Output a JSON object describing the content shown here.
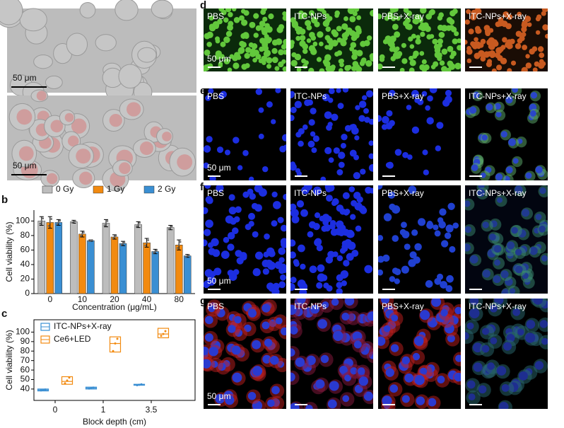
{
  "panel_labels": [
    "a",
    "b",
    "c",
    "d",
    "e",
    "f",
    "g"
  ],
  "panel_a": {
    "scale_bars": [
      "50 μm",
      "50 μm"
    ]
  },
  "image_rows": [
    {
      "labels": [
        "PBS",
        "ITC-NPs",
        "PBS+X-ray",
        "ITC-NPs+X-ray"
      ],
      "scale_bar": "50 μm"
    },
    {
      "labels": [
        "PBS",
        "ITC-NPs",
        "PBS+X-ray",
        "ITC-NPs+X-ray"
      ],
      "scale_bar": "50 μm"
    },
    {
      "labels": [
        "PBS",
        "ITC-NPs",
        "PBS+X-ray",
        "ITC-NPs+X-ray"
      ],
      "scale_bar": "50 μm"
    },
    {
      "labels": [
        "PBS",
        "ITC-NPs",
        "PBS+X-ray",
        "ITC-NPs+X-ray"
      ],
      "scale_bar": "50 μm"
    }
  ],
  "chart_data": [
    {
      "type": "bar",
      "x_label": "Concentration (μg/mL)",
      "y_label": "Cell viability (%)",
      "categories": [
        "0",
        "10",
        "20",
        "40",
        "80"
      ],
      "series": [
        {
          "name": "0 Gy",
          "color": "#bdbdbd",
          "values": [
            100,
            99,
            97,
            95,
            91
          ],
          "errors": [
            6,
            2,
            5,
            4,
            3
          ]
        },
        {
          "name": "1 Gy",
          "color": "#f28a10",
          "values": [
            98,
            82,
            78,
            70,
            67
          ],
          "errors": [
            8,
            4,
            3,
            6,
            7
          ]
        },
        {
          "name": "2 Gy",
          "color": "#3a8fd3",
          "values": [
            98,
            73,
            69,
            58,
            52
          ],
          "errors": [
            4,
            1,
            3,
            3,
            2
          ]
        }
      ],
      "ylim": [
        0,
        115
      ],
      "yticks": [
        0,
        20,
        40,
        60,
        80,
        100
      ],
      "legend": "top"
    },
    {
      "type": "box",
      "x_label": "Block depth (cm)",
      "y_label": "Cell viability (%)",
      "categories": [
        "0",
        "1",
        "3.5"
      ],
      "series": [
        {
          "name": "ITC-NPs+X-ray",
          "color": "#3a8fd3",
          "q1": [
            38,
            40,
            44
          ],
          "median": [
            39,
            41,
            44.5
          ],
          "q3": [
            40,
            42,
            45
          ],
          "points": [
            [
              38.5,
              39,
              39.5
            ],
            [
              40.5,
              41,
              41.5
            ],
            [
              44,
              44.5,
              45
            ]
          ]
        },
        {
          "name": "Ce6+LED",
          "color": "#f28a10",
          "q1": [
            45,
            79,
            94
          ],
          "median": [
            48,
            88,
            98
          ],
          "q3": [
            53,
            95,
            104
          ],
          "points": [
            [
              46,
              49,
              52
            ],
            [
              80,
              88,
              93
            ],
            [
              96,
              98,
              101
            ]
          ]
        }
      ],
      "ylim": [
        28,
        113
      ],
      "yticks": [
        40,
        50,
        60,
        70,
        80,
        90,
        100
      ],
      "legend": "top-left"
    }
  ]
}
